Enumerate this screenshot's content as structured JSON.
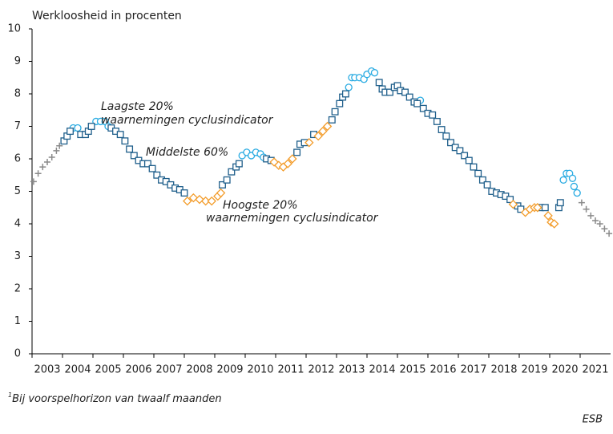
{
  "chart_data": {
    "type": "scatter",
    "title": "Werkloosheid in procenten",
    "xlim": [
      2003,
      2022
    ],
    "xticks": [
      {
        "value": 2003,
        "label": "2003"
      },
      {
        "value": 2004,
        "label": "2004"
      },
      {
        "value": 2005,
        "label": "2005"
      },
      {
        "value": 2006,
        "label": "2006"
      },
      {
        "value": 2007,
        "label": "2007"
      },
      {
        "value": 2008,
        "label": "2008"
      },
      {
        "value": 2009,
        "label": "2009"
      },
      {
        "value": 2010,
        "label": "2010"
      },
      {
        "value": 2011,
        "label": "2011"
      },
      {
        "value": 2012,
        "label": "2012"
      },
      {
        "value": 2013,
        "label": "2013"
      },
      {
        "value": 2014,
        "label": "2014"
      },
      {
        "value": 2015,
        "label": "2015"
      },
      {
        "value": 2016,
        "label": "2016"
      },
      {
        "value": 2017,
        "label": "2017"
      },
      {
        "value": 2018,
        "label": "2018"
      },
      {
        "value": 2019,
        "label": "2019"
      },
      {
        "value": 2020,
        "label": "2020"
      },
      {
        "value": 2021,
        "label": "2021"
      }
    ],
    "ylim": [
      0,
      10
    ],
    "yticks": [
      0,
      1,
      2,
      3,
      4,
      5,
      6,
      7,
      8,
      9,
      10
    ],
    "series": [
      {
        "marker": "plus",
        "color": "#8a8a8a",
        "x": [
          2003.05,
          2003.2,
          2003.35,
          2003.5,
          2003.65,
          2003.8,
          2003.9,
          2021.05,
          2021.2,
          2021.35,
          2021.5,
          2021.65,
          2021.8,
          2021.95
        ],
        "values": [
          5.3,
          5.55,
          5.75,
          5.9,
          6.05,
          6.25,
          6.4,
          4.65,
          4.45,
          4.25,
          4.1,
          4.0,
          3.85,
          3.7
        ]
      },
      {
        "marker": "circle",
        "color": "#29abe2",
        "label_lines": [
          "Laagste 20%",
          "waarnemingen cyclusindicator"
        ],
        "x": [
          2004.35,
          2004.5,
          2005.1,
          2005.25,
          2005.4,
          2005.5,
          2009.9,
          2010.05,
          2010.2,
          2010.35,
          2010.5,
          2010.6,
          2013.4,
          2013.5,
          2013.6,
          2013.75,
          2013.9,
          2014.0,
          2014.15,
          2014.25,
          2015.75,
          2020.45,
          2020.55,
          2020.65,
          2020.75,
          2020.8,
          2020.9
        ],
        "values": [
          6.95,
          6.95,
          7.15,
          7.15,
          7.15,
          7.0,
          6.1,
          6.2,
          6.1,
          6.2,
          6.15,
          6.05,
          8.2,
          8.5,
          8.5,
          8.5,
          8.45,
          8.6,
          8.7,
          8.65,
          7.8,
          5.35,
          5.55,
          5.55,
          5.4,
          5.15,
          4.95
        ]
      },
      {
        "marker": "square",
        "color": "#1f5f8b",
        "label_lines": [
          "Middelste 60%"
        ],
        "x": [
          2004.05,
          2004.15,
          2004.25,
          2004.6,
          2004.75,
          2004.85,
          2004.95,
          2005.6,
          2005.75,
          2005.9,
          2006.05,
          2006.2,
          2006.35,
          2006.5,
          2006.65,
          2006.8,
          2006.95,
          2007.1,
          2007.25,
          2007.4,
          2007.55,
          2007.7,
          2007.85,
          2008.0,
          2009.25,
          2009.4,
          2009.55,
          2009.7,
          2009.8,
          2010.7,
          2010.85,
          2011.7,
          2011.8,
          2011.95,
          2012.25,
          2012.85,
          2012.95,
          2013.1,
          2013.2,
          2013.3,
          2014.4,
          2014.5,
          2014.6,
          2014.75,
          2014.9,
          2015.0,
          2015.1,
          2015.25,
          2015.4,
          2015.55,
          2015.65,
          2015.85,
          2016.0,
          2016.15,
          2016.3,
          2016.45,
          2016.6,
          2016.75,
          2016.9,
          2017.05,
          2017.2,
          2017.35,
          2017.5,
          2017.65,
          2017.8,
          2017.95,
          2018.1,
          2018.25,
          2018.4,
          2018.55,
          2018.7,
          2018.95,
          2019.05,
          2019.7,
          2019.85,
          2020.3,
          2020.35
        ],
        "values": [
          6.55,
          6.7,
          6.85,
          6.75,
          6.75,
          6.85,
          7.0,
          6.95,
          6.85,
          6.75,
          6.55,
          6.3,
          6.1,
          5.95,
          5.85,
          5.85,
          5.7,
          5.5,
          5.35,
          5.3,
          5.2,
          5.1,
          5.05,
          4.95,
          5.2,
          5.35,
          5.6,
          5.75,
          5.85,
          6.0,
          5.95,
          6.2,
          6.45,
          6.5,
          6.75,
          7.2,
          7.45,
          7.7,
          7.9,
          8.0,
          8.35,
          8.15,
          8.05,
          8.05,
          8.2,
          8.25,
          8.1,
          8.05,
          7.9,
          7.75,
          7.7,
          7.55,
          7.4,
          7.35,
          7.15,
          6.9,
          6.7,
          6.5,
          6.35,
          6.25,
          6.1,
          5.95,
          5.75,
          5.55,
          5.35,
          5.2,
          5.0,
          4.95,
          4.9,
          4.85,
          4.75,
          4.55,
          4.45,
          4.5,
          4.5,
          4.5,
          4.65
        ]
      },
      {
        "marker": "diamond",
        "color": "#f39c2a",
        "label_lines": [
          "Hoogste 20%",
          "waarnemingen cyclusindicator"
        ],
        "x": [
          2008.1,
          2008.3,
          2008.5,
          2008.7,
          2008.9,
          2009.1,
          2009.2,
          2010.95,
          2011.1,
          2011.25,
          2011.4,
          2011.55,
          2012.1,
          2012.4,
          2012.55,
          2012.7,
          2018.8,
          2019.2,
          2019.35,
          2019.5,
          2019.6,
          2019.95,
          2020.05,
          2020.15
        ],
        "values": [
          4.7,
          4.8,
          4.75,
          4.7,
          4.7,
          4.85,
          4.95,
          5.9,
          5.8,
          5.75,
          5.85,
          6.0,
          6.5,
          6.7,
          6.85,
          7.0,
          4.6,
          4.35,
          4.45,
          4.5,
          4.5,
          4.25,
          4.05,
          4.0
        ]
      }
    ],
    "footnote": {
      "mark": "1",
      "text": "Bij voorspelhorizon van twaalf maanden"
    },
    "source": "ESB"
  }
}
